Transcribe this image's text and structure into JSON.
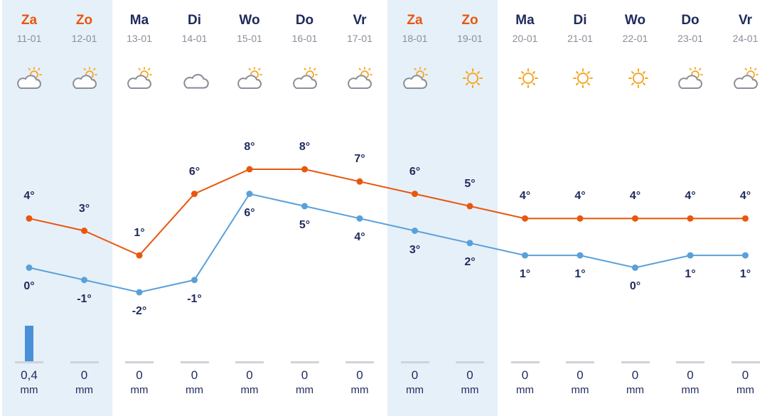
{
  "chart_data": {
    "type": "line",
    "categories": [
      "Za",
      "Zo",
      "Ma",
      "Di",
      "Wo",
      "Do",
      "Vr",
      "Za",
      "Zo",
      "Ma",
      "Di",
      "Wo",
      "Do",
      "Vr"
    ],
    "dates": [
      "11-01",
      "12-01",
      "13-01",
      "14-01",
      "15-01",
      "16-01",
      "17-01",
      "18-01",
      "19-01",
      "20-01",
      "21-01",
      "22-01",
      "23-01",
      "24-01"
    ],
    "weekend": [
      true,
      true,
      false,
      false,
      false,
      false,
      false,
      true,
      true,
      false,
      false,
      false,
      false,
      false
    ],
    "icons": [
      "partly-cloudy-icon",
      "partly-cloudy-icon",
      "partly-cloudy-icon",
      "cloud-icon",
      "partly-cloudy-icon",
      "partly-cloudy-icon",
      "partly-cloudy-icon",
      "partly-cloudy-icon",
      "sun-icon",
      "sun-icon",
      "sun-icon",
      "sun-icon",
      "partly-cloudy-icon",
      "partly-cloudy-icon"
    ],
    "series": [
      {
        "values": [
          4,
          3,
          1,
          6,
          8,
          8,
          7,
          6,
          5,
          4,
          4,
          4,
          4,
          4
        ],
        "color": "#e8570e"
      },
      {
        "values": [
          0,
          -1,
          -2,
          -1,
          6,
          5,
          4,
          3,
          2,
          1,
          1,
          0,
          1,
          1
        ],
        "color": "#5aa0da"
      }
    ],
    "max_labels": [
      "4°",
      "3°",
      "1°",
      "6°",
      "8°",
      "8°",
      "7°",
      "6°",
      "5°",
      "4°",
      "4°",
      "4°",
      "4°",
      "4°"
    ],
    "min_labels": [
      "0°",
      "-1°",
      "-2°",
      "-1°",
      "6°",
      "5°",
      "4°",
      "3°",
      "2°",
      "1°",
      "1°",
      "0°",
      "1°",
      "1°"
    ],
    "precipitation": {
      "values": [
        0.4,
        0,
        0,
        0,
        0,
        0,
        0,
        0,
        0,
        0,
        0,
        0,
        0,
        0
      ],
      "labels": [
        "0,4",
        "0",
        "0",
        "0",
        "0",
        "0",
        "0",
        "0",
        "0",
        "0",
        "0",
        "0",
        "0",
        "0"
      ],
      "unit": "mm"
    }
  }
}
